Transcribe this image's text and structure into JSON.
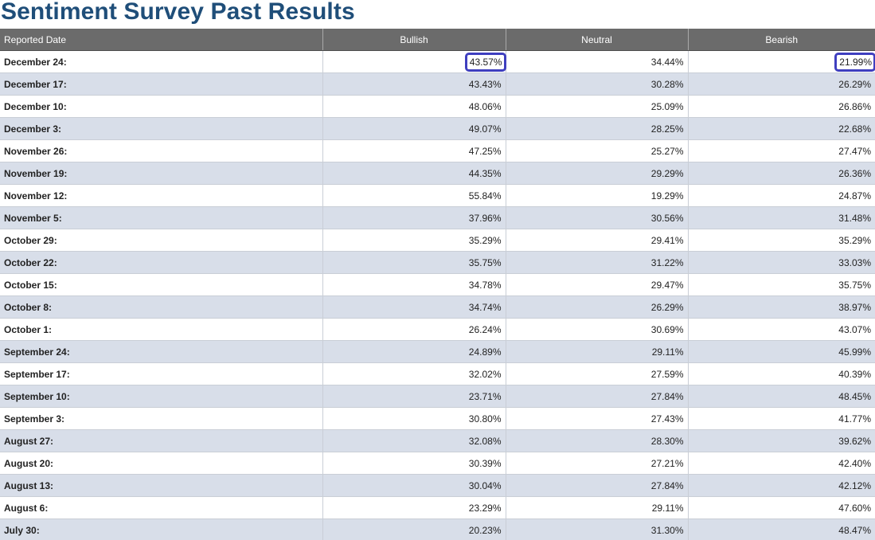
{
  "page": {
    "title": "Sentiment Survey Past Results"
  },
  "table": {
    "headers": [
      "Reported Date",
      "Bullish",
      "Neutral",
      "Bearish"
    ],
    "highlighted_cells": [
      {
        "row": 0,
        "column": "bullish"
      },
      {
        "row": 0,
        "column": "bearish"
      }
    ],
    "highlight_color": "#3f3fbf",
    "rows": [
      {
        "date": "December 24:",
        "bullish": "43.57%",
        "neutral": "34.44%",
        "bearish": "21.99%"
      },
      {
        "date": "December 17:",
        "bullish": "43.43%",
        "neutral": "30.28%",
        "bearish": "26.29%"
      },
      {
        "date": "December 10:",
        "bullish": "48.06%",
        "neutral": "25.09%",
        "bearish": "26.86%"
      },
      {
        "date": "December 3:",
        "bullish": "49.07%",
        "neutral": "28.25%",
        "bearish": "22.68%"
      },
      {
        "date": "November 26:",
        "bullish": "47.25%",
        "neutral": "25.27%",
        "bearish": "27.47%"
      },
      {
        "date": "November 19:",
        "bullish": "44.35%",
        "neutral": "29.29%",
        "bearish": "26.36%"
      },
      {
        "date": "November 12:",
        "bullish": "55.84%",
        "neutral": "19.29%",
        "bearish": "24.87%"
      },
      {
        "date": "November 5:",
        "bullish": "37.96%",
        "neutral": "30.56%",
        "bearish": "31.48%"
      },
      {
        "date": "October 29:",
        "bullish": "35.29%",
        "neutral": "29.41%",
        "bearish": "35.29%"
      },
      {
        "date": "October 22:",
        "bullish": "35.75%",
        "neutral": "31.22%",
        "bearish": "33.03%"
      },
      {
        "date": "October 15:",
        "bullish": "34.78%",
        "neutral": "29.47%",
        "bearish": "35.75%"
      },
      {
        "date": "October 8:",
        "bullish": "34.74%",
        "neutral": "26.29%",
        "bearish": "38.97%"
      },
      {
        "date": "October 1:",
        "bullish": "26.24%",
        "neutral": "30.69%",
        "bearish": "43.07%"
      },
      {
        "date": "September 24:",
        "bullish": "24.89%",
        "neutral": "29.11%",
        "bearish": "45.99%"
      },
      {
        "date": "September 17:",
        "bullish": "32.02%",
        "neutral": "27.59%",
        "bearish": "40.39%"
      },
      {
        "date": "September 10:",
        "bullish": "23.71%",
        "neutral": "27.84%",
        "bearish": "48.45%"
      },
      {
        "date": "September 3:",
        "bullish": "30.80%",
        "neutral": "27.43%",
        "bearish": "41.77%"
      },
      {
        "date": "August 27:",
        "bullish": "32.08%",
        "neutral": "28.30%",
        "bearish": "39.62%"
      },
      {
        "date": "August 20:",
        "bullish": "30.39%",
        "neutral": "27.21%",
        "bearish": "42.40%"
      },
      {
        "date": "August 13:",
        "bullish": "30.04%",
        "neutral": "27.84%",
        "bearish": "42.12%"
      },
      {
        "date": "August 6:",
        "bullish": "23.29%",
        "neutral": "29.11%",
        "bearish": "47.60%"
      },
      {
        "date": "July 30:",
        "bullish": "20.23%",
        "neutral": "31.30%",
        "bearish": "48.47%"
      }
    ]
  }
}
